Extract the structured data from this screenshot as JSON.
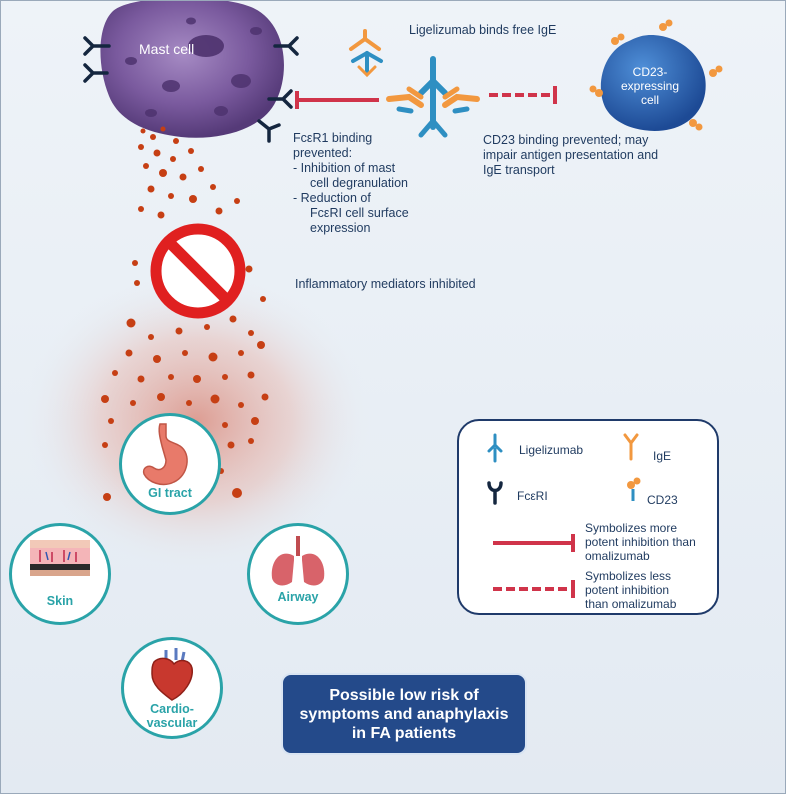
{
  "mast_cell": {
    "label": "Mast cell"
  },
  "ligelizumab": {
    "binds_free_ige": "Ligelizumab binds free IgE"
  },
  "cd23_cell": {
    "label": "CD23-\nexpressing\ncell"
  },
  "fcer1_effects": {
    "heading_line1": "FcεR1 binding",
    "heading_line2": "prevented:",
    "item1_line1": "-   Inhibition of mast",
    "item1_line2": "cell degranulation",
    "item2_line1": "-   Reduction of",
    "item2_line2": "FcεRI cell surface",
    "item2_line3": "expression"
  },
  "cd23_effects": {
    "line1": "CD23 binding prevented; may",
    "line2": "impair antigen presentation and",
    "line3": "IgE transport"
  },
  "mediators": {
    "label": "Inflammatory mediators inhibited"
  },
  "organs": {
    "gi": "GI tract",
    "skin": "Skin",
    "airway": "Airway",
    "cardio_line1": "Cardio-",
    "cardio_line2": "vascular"
  },
  "legend": {
    "ligelizumab": "Ligelizumab",
    "ige": "IgE",
    "fceri": "FcεRI",
    "cd23": "CD23",
    "more_line1": "Symbolizes more",
    "more_line2": "potent inhibition than",
    "more_line3": "omalizumab",
    "less_line1": "Symbolizes less",
    "less_line2": "potent inhibition",
    "less_line3": "than omalizumab"
  },
  "conclusion": {
    "text": "Possible low risk of symptoms and anaphylaxis in FA patients"
  },
  "colors": {
    "mast_cell": "#6b4a8c",
    "cd23_cell": "#2a5aa6",
    "inhibition_red": "#d0344a",
    "ligelizumab_blue": "#2e8fc2",
    "ige_orange": "#f2983f",
    "granule": "#c63f14",
    "accent_teal": "#2aa3a8",
    "conclusion_bg": "#244a8a"
  }
}
